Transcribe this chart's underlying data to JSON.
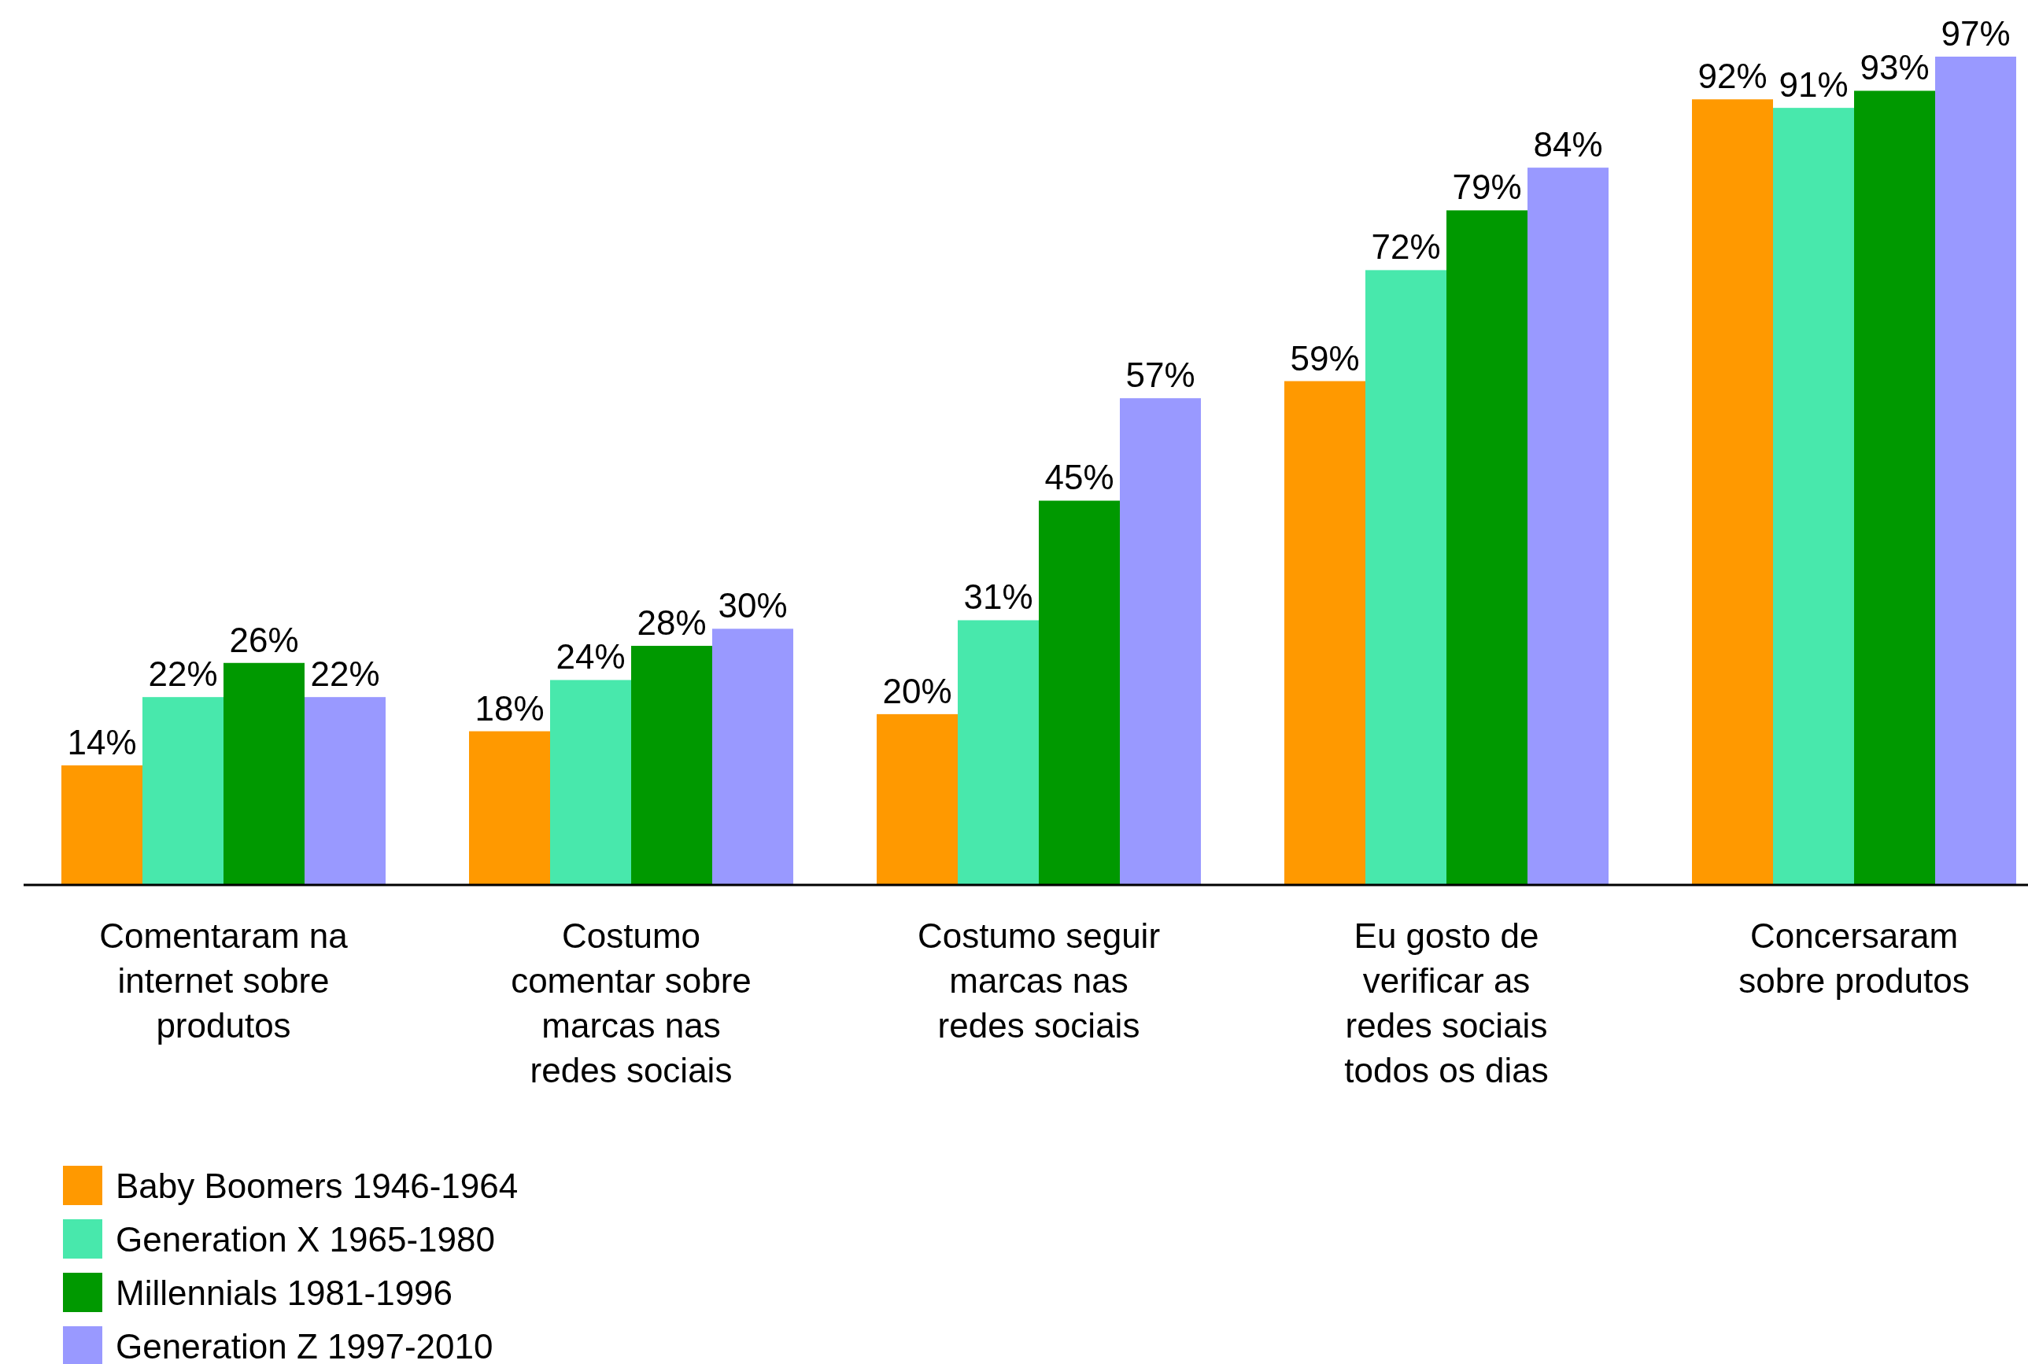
{
  "chart_data": {
    "type": "bar",
    "categories": [
      "Comentaram na internet sobre produtos",
      "Costumo comentar sobre marcas nas redes sociais",
      "Costumo seguir marcas nas redes sociais",
      "Eu gosto de verificar as redes sociais todos os dias",
      "Concersaram sobre produtos"
    ],
    "tick_labels": "x",
    "legend": "bottom left",
    "series": [
      {
        "name": "Baby Boomers 1946-1964",
        "color": "#ff9900",
        "values": [
          14,
          18,
          20,
          59,
          92
        ],
        "value_labels": [
          "14%",
          "18%",
          "20%",
          "59%",
          "92%"
        ]
      },
      {
        "name": "Generation X 1965-1980",
        "color": "#48e8ac",
        "values": [
          22,
          24,
          31,
          72,
          91
        ],
        "value_labels": [
          "22%",
          "24%",
          "31%",
          "72%",
          "91%"
        ]
      },
      {
        "name": "Millennials 1981-1996",
        "color": "#009900",
        "values": [
          26,
          28,
          45,
          79,
          93
        ],
        "value_labels": [
          "26%",
          "28%",
          "45%",
          "79%",
          "93%"
        ]
      },
      {
        "name": "Generation Z 1997-2010",
        "color": "#9999ff",
        "values": [
          22,
          30,
          57,
          84,
          97
        ],
        "value_labels": [
          "22%",
          "30%",
          "57%",
          "84%",
          "97%"
        ]
      }
    ]
  }
}
